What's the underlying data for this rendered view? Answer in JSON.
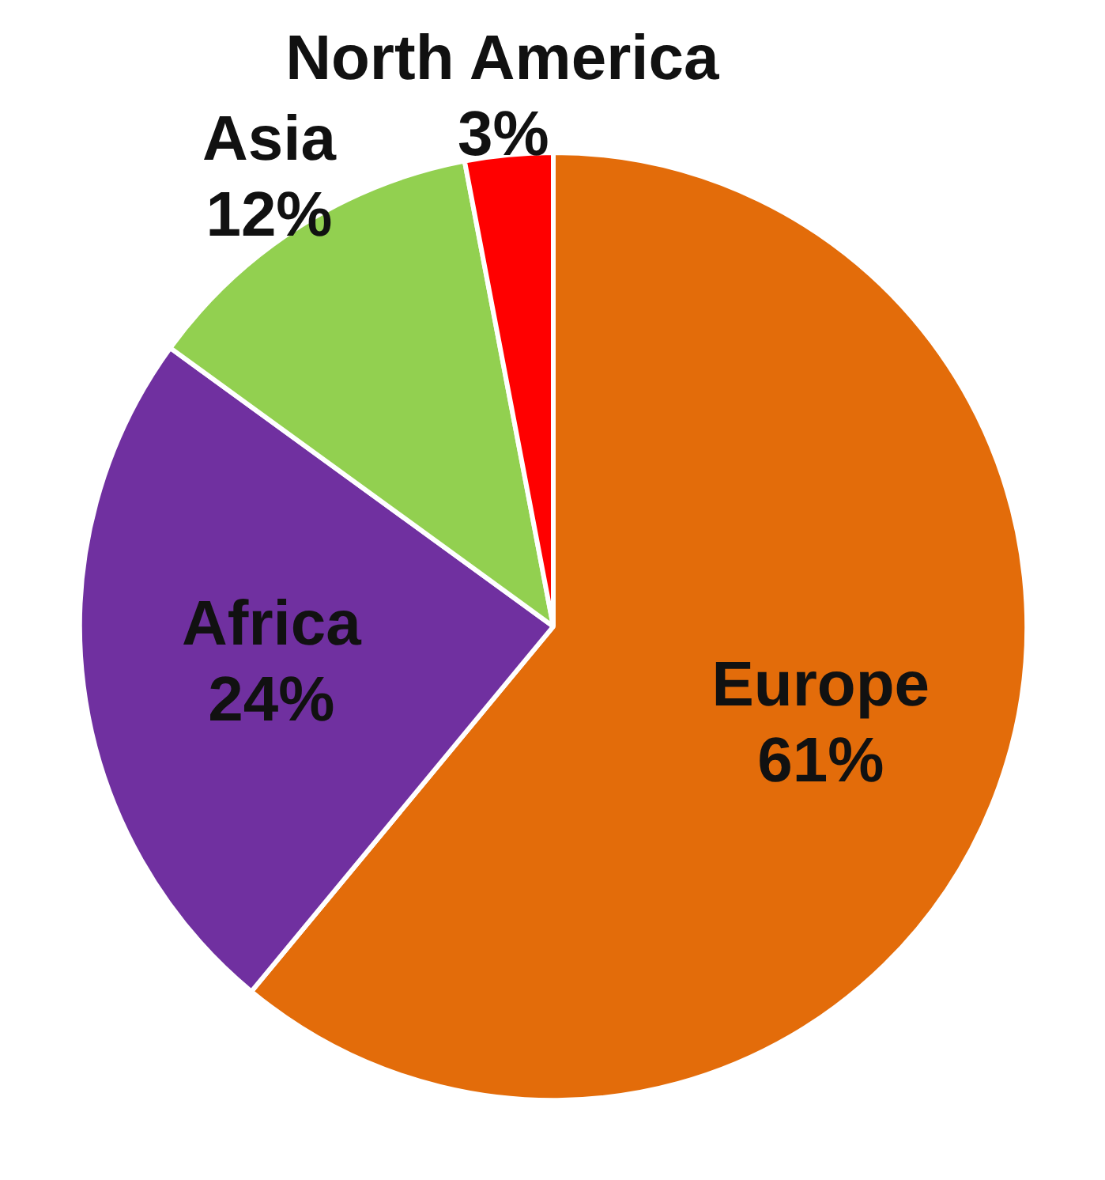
{
  "chart_data": {
    "type": "pie",
    "categories": [
      "Europe",
      "Africa",
      "Asia",
      "North America"
    ],
    "values": [
      61,
      24,
      12,
      3
    ],
    "value_labels": [
      "61%",
      "24%",
      "12%",
      "3%"
    ],
    "colors": [
      "#e36c0a",
      "#7030a0",
      "#92d050",
      "#ff0000"
    ]
  }
}
